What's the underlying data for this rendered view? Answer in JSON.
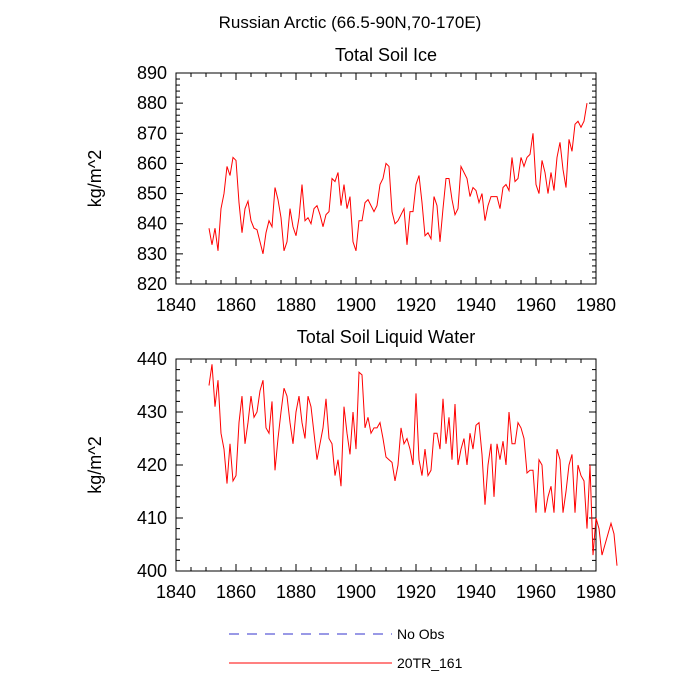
{
  "figure_title": "Russian Arctic (66.5-90N,70-170E)",
  "legend": [
    {
      "label": "No Obs",
      "color": "#3333cc",
      "dashed": true
    },
    {
      "label": "20TR_161",
      "color": "#ff0000",
      "dashed": false
    }
  ],
  "chart_data": [
    {
      "type": "line",
      "title": "Total Soil Ice",
      "xlabel": "",
      "ylabel": "kg/m^2",
      "xlim": [
        1840,
        1980
      ],
      "ylim": [
        820,
        890
      ],
      "xticks": [
        1840,
        1860,
        1880,
        1900,
        1920,
        1940,
        1960,
        1980
      ],
      "yticks": [
        820,
        830,
        840,
        850,
        860,
        870,
        880,
        890
      ],
      "series": [
        {
          "name": "20TR_161",
          "color": "#ff0000",
          "x_start": 1851,
          "values": [
            838.5,
            833,
            838.5,
            831,
            845,
            850,
            859,
            856,
            862,
            861,
            847,
            837,
            845,
            847.5,
            841,
            838.5,
            838,
            834,
            830,
            837,
            841,
            839,
            852,
            848,
            842,
            831,
            834,
            845,
            839,
            836,
            842,
            853,
            841,
            842,
            840,
            845,
            846,
            843,
            839,
            843,
            844,
            855,
            854,
            857,
            846,
            853,
            845,
            849,
            834,
            831,
            841,
            841,
            847,
            848,
            846,
            844,
            846,
            853,
            855,
            860,
            859,
            844,
            840,
            841,
            843,
            845,
            833,
            844,
            844,
            853,
            856,
            847,
            836,
            837,
            835,
            849,
            846,
            834,
            845,
            855,
            855,
            848,
            843,
            845,
            859,
            857,
            855,
            849,
            852,
            851,
            847,
            850,
            841,
            846,
            849,
            849,
            849,
            845,
            852,
            853,
            851,
            862,
            854,
            855,
            862,
            859,
            862,
            863,
            870,
            853,
            850,
            861,
            857,
            850,
            857,
            851,
            862,
            867,
            858,
            852,
            868,
            864,
            873,
            874,
            872,
            874,
            880
          ]
        }
      ]
    },
    {
      "type": "line",
      "title": "Total Soil Liquid Water",
      "xlabel": "",
      "ylabel": "kg/m^2",
      "xlim": [
        1840,
        1980
      ],
      "ylim": [
        400,
        440
      ],
      "xticks": [
        1840,
        1860,
        1880,
        1900,
        1920,
        1940,
        1960,
        1980
      ],
      "yticks": [
        400,
        410,
        420,
        430,
        440
      ],
      "series": [
        {
          "name": "20TR_161",
          "color": "#ff0000",
          "x_start": 1851,
          "values": [
            435,
            439,
            431,
            436,
            426,
            423,
            416.5,
            424,
            417,
            418,
            428,
            433,
            424,
            428,
            433,
            429,
            430,
            434,
            436,
            427,
            426,
            432,
            419,
            425,
            430,
            434.5,
            433,
            428,
            424,
            430,
            433,
            428,
            425,
            433,
            431,
            426,
            421,
            424,
            427,
            432.5,
            425,
            424,
            418,
            421,
            416,
            431,
            426,
            422,
            430,
            423,
            437.5,
            437,
            427,
            429,
            426,
            427,
            427,
            428,
            425,
            421.5,
            421,
            420.5,
            417,
            420,
            427,
            424,
            425,
            423,
            420,
            433.5,
            421,
            418,
            423,
            418,
            419,
            426,
            426,
            423,
            432.5,
            424,
            429,
            421,
            431.5,
            420,
            423,
            425,
            420,
            426,
            423,
            427.5,
            428,
            422,
            412.5,
            420,
            424,
            414,
            424,
            421,
            424.5,
            420,
            430,
            424,
            424,
            428,
            427,
            425,
            418.5,
            419,
            419,
            411,
            421,
            420,
            411,
            414,
            416,
            411,
            423,
            421,
            411,
            415,
            420,
            422,
            411,
            420,
            418,
            417,
            408,
            420,
            403,
            410,
            408,
            403,
            405,
            407,
            409,
            407,
            401
          ]
        }
      ]
    }
  ]
}
